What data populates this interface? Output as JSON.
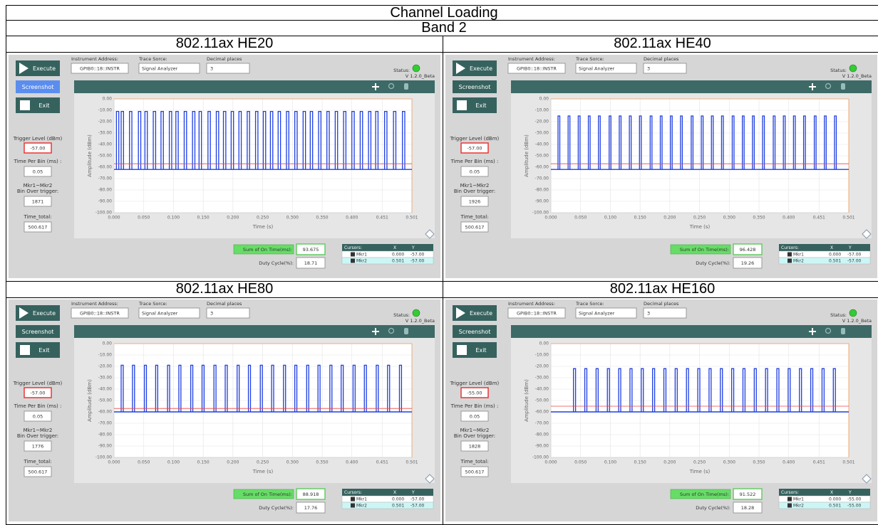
{
  "title": "Channel Loading",
  "band": "Band 2",
  "labels": {
    "execute": "Execute",
    "screenshot": "Screenshot",
    "exit": "Exit",
    "instrument_address": "Instrument Address:",
    "trace_source": "Trace Sorce:",
    "decimal_places": "Decimal places",
    "status": "Status:",
    "version": "V 1.2.0_Beta",
    "trigger_level": "Trigger Level (dBm)",
    "time_per_bin": "Time Per Bin (ms) :",
    "mkr_line1": "Mkr1~Mkr2",
    "mkr_line2": "Bin Over trigger:",
    "time_total": "Time_total:",
    "y_label": "Amplitude (dBm)",
    "x_label": "Time (s)",
    "sum_on_time": "Sum of On Time(ms):",
    "duty_cycle": "Duty Cycle(%):",
    "cursors": "Cursors:",
    "cursor_x": "X",
    "cursor_y": "Y"
  },
  "chart_axes": {
    "xlim": [
      0,
      0.501
    ],
    "ylim": [
      -100,
      0
    ],
    "xticks": [
      {
        "value": 0,
        "label": "0.000"
      },
      {
        "value": 0.05,
        "label": "0.050"
      },
      {
        "value": 0.1,
        "label": "0.100"
      },
      {
        "value": 0.15,
        "label": "0.150"
      },
      {
        "value": 0.2,
        "label": "0.200"
      },
      {
        "value": 0.25,
        "label": "0.250"
      },
      {
        "value": 0.3,
        "label": "0.300"
      },
      {
        "value": 0.35,
        "label": "0.350"
      },
      {
        "value": 0.4,
        "label": "0.400"
      },
      {
        "value": 0.451,
        "label": "0.451"
      },
      {
        "value": 0.501,
        "label": "0.501"
      }
    ],
    "yticks": [
      {
        "value": 0,
        "label": "0.00"
      },
      {
        "value": -10,
        "label": "-10.00"
      },
      {
        "value": -20,
        "label": "-20.00"
      },
      {
        "value": -30,
        "label": "-30.00"
      },
      {
        "value": -40,
        "label": "-40.00"
      },
      {
        "value": -50,
        "label": "-50.00"
      },
      {
        "value": -60,
        "label": "-60.00"
      },
      {
        "value": -70,
        "label": "-70.00"
      },
      {
        "value": -80,
        "label": "-80.00"
      },
      {
        "value": -90,
        "label": "-90.00"
      },
      {
        "value": -100,
        "label": "-100.00"
      }
    ]
  },
  "panels": [
    {
      "header": "802.11ax HE20",
      "address": "GPIB0::18::INSTR",
      "trace_source": "Signal Analyzer",
      "decimal_places": "3",
      "screenshot_active": true,
      "trigger_level": {
        "value": -57,
        "label": "-57.00"
      },
      "time_per_bin": "0.05",
      "bins_over": "1871",
      "time_total": "500.617",
      "sum_on_time": "93.675",
      "duty_cycle": "18.71",
      "cursors": [
        [
          "Mkr1",
          "0.000",
          "-57.00"
        ],
        [
          "Mkr2",
          "0.501",
          "-57.00"
        ]
      ],
      "trace": {
        "high": -11,
        "low": -62,
        "pulse_width": 0.004,
        "pulse_starts": [
          0.004,
          0.012,
          0.026,
          0.041,
          0.052,
          0.066,
          0.079,
          0.093,
          0.104,
          0.118,
          0.132,
          0.143,
          0.158,
          0.172,
          0.184,
          0.197,
          0.21,
          0.224,
          0.238,
          0.251,
          0.263,
          0.276,
          0.29,
          0.304,
          0.318,
          0.33,
          0.344,
          0.358,
          0.372,
          0.386,
          0.4,
          0.414,
          0.428,
          0.44,
          0.455,
          0.47,
          0.485
        ]
      }
    },
    {
      "header": "802.11ax HE40",
      "address": "GPIB0::18::INSTR",
      "trace_source": "Signal Analyzer",
      "decimal_places": "3",
      "screenshot_active": false,
      "trigger_level": {
        "value": -57,
        "label": "-57.00"
      },
      "time_per_bin": "0.05",
      "bins_over": "1926",
      "time_total": "500.617",
      "sum_on_time": "96.428",
      "duty_cycle": "19.26",
      "cursors": [
        [
          "Mkr1",
          "0.000",
          "-57.00"
        ],
        [
          "Mkr2",
          "0.501",
          "-57.00"
        ]
      ],
      "trace": {
        "high": -15,
        "low": -62,
        "pulse_width": 0.003,
        "pulse_starts": [
          0.012,
          0.029,
          0.046,
          0.063,
          0.08,
          0.098,
          0.115,
          0.132,
          0.149,
          0.167,
          0.184,
          0.201,
          0.218,
          0.236,
          0.253,
          0.27,
          0.287,
          0.305,
          0.322,
          0.339,
          0.356,
          0.374,
          0.391,
          0.408,
          0.425,
          0.443,
          0.46,
          0.477
        ]
      }
    },
    {
      "header": "802.11ax HE80",
      "address": "GPIB0::18::INSTR",
      "trace_source": "Signal Analyzer",
      "decimal_places": "3",
      "screenshot_active": false,
      "trigger_level": {
        "value": -57,
        "label": "-57.00"
      },
      "time_per_bin": "0.05",
      "bins_over": "1776",
      "time_total": "500.617",
      "sum_on_time": "88.918",
      "duty_cycle": "17.76",
      "cursors": [
        [
          "Mkr1",
          "0.000",
          "-57.00"
        ],
        [
          "Mkr2",
          "0.501",
          "-57.00"
        ]
      ],
      "trace": {
        "high": -19,
        "low": -60,
        "pulse_width": 0.0035,
        "pulse_starts": [
          0.012,
          0.031,
          0.051,
          0.07,
          0.09,
          0.109,
          0.129,
          0.148,
          0.168,
          0.187,
          0.207,
          0.226,
          0.246,
          0.265,
          0.285,
          0.304,
          0.324,
          0.343,
          0.363,
          0.382,
          0.402,
          0.421,
          0.441,
          0.46,
          0.48
        ]
      }
    },
    {
      "header": "802.11ax HE160",
      "address": "GPIB0::18::INSTR",
      "trace_source": "Signal Analyzer",
      "decimal_places": "3",
      "screenshot_active": false,
      "trigger_level": {
        "value": -55,
        "label": "-55.00"
      },
      "time_per_bin": "0.05",
      "bins_over": "1828",
      "time_total": "500.617",
      "sum_on_time": "91.522",
      "duty_cycle": "18.28",
      "cursors": [
        [
          "Mkr1",
          "0.000",
          "-55.00"
        ],
        [
          "Mkr2",
          "0.501",
          "-55.00"
        ]
      ],
      "trace": {
        "high": -22,
        "low": -60,
        "pulse_width": 0.0035,
        "pulse_starts": [
          0.038,
          0.057,
          0.076,
          0.095,
          0.114,
          0.133,
          0.152,
          0.171,
          0.19,
          0.209,
          0.228,
          0.247,
          0.266,
          0.285,
          0.304,
          0.323,
          0.342,
          0.361,
          0.38,
          0.399,
          0.418,
          0.437,
          0.456,
          0.475
        ]
      }
    }
  ]
}
